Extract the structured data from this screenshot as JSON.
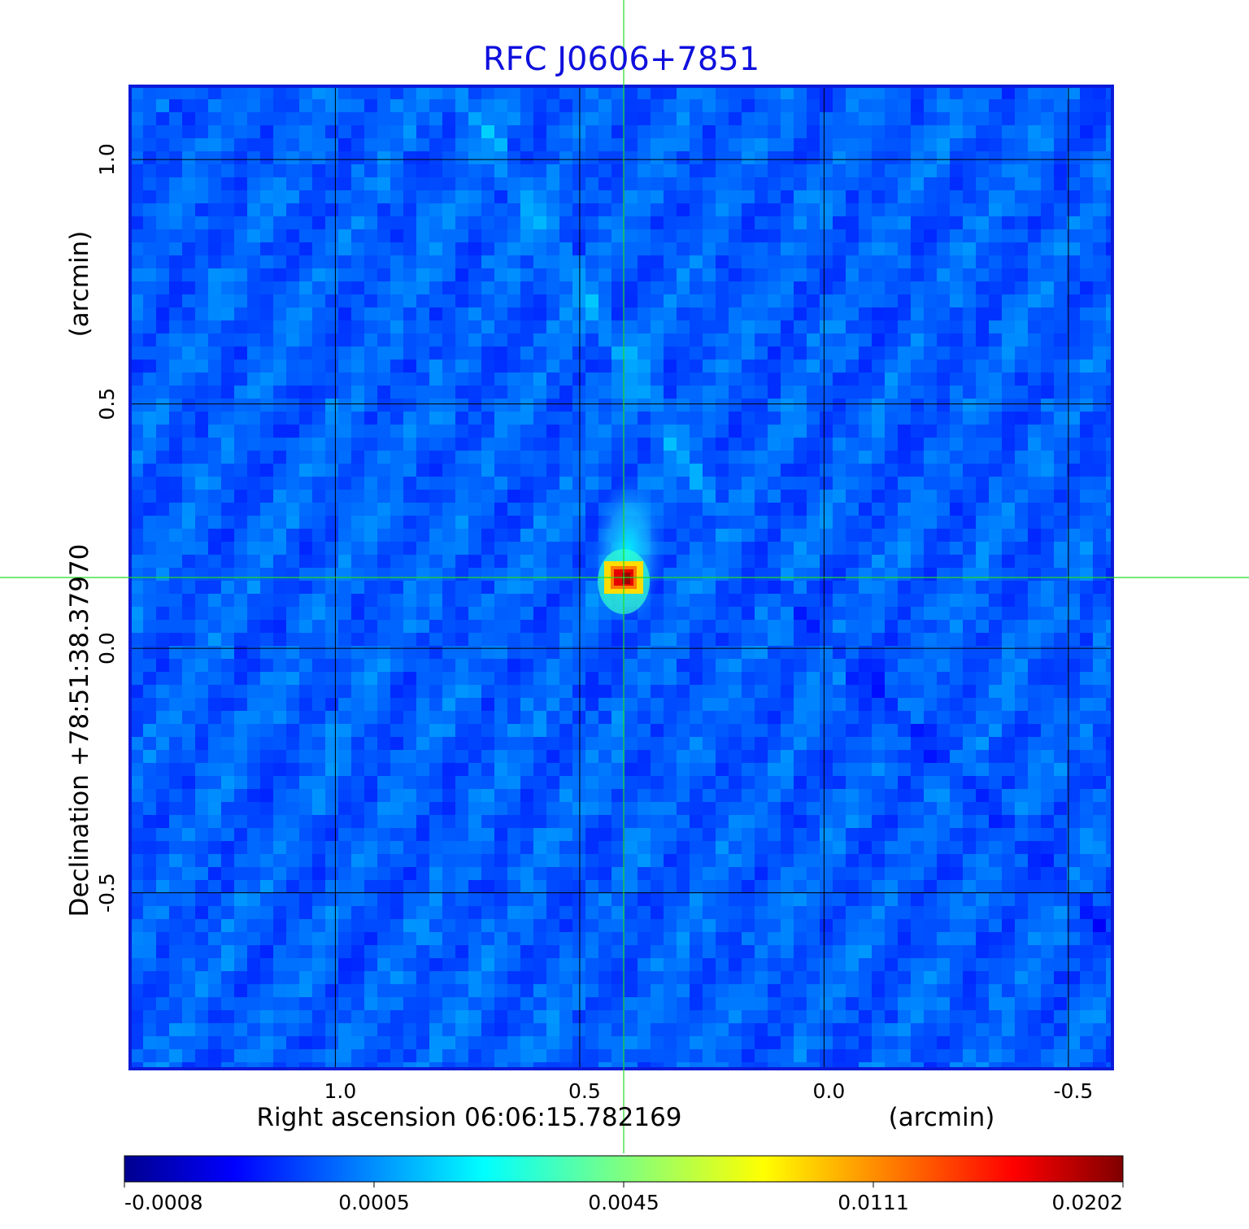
{
  "chart_data": {
    "type": "heatmap",
    "title": "RFC J0606+7851",
    "xlabel": "Right ascension  06:06:15.782169",
    "xunit": "(arcmin)",
    "ylabel": "Declination  +78:51:38.37970",
    "yunit": "(arcmin)",
    "x_ticks": [
      "1.0",
      "0.5",
      "0.0",
      "-0.5"
    ],
    "y_ticks": [
      "1.0",
      "0.5",
      "0.0",
      "-0.5"
    ],
    "xlim": [
      1.42,
      -0.59
    ],
    "ylim": [
      -0.86,
      1.15
    ],
    "x_axis_reversed": true,
    "grid": true,
    "crosshair": {
      "x": 0.41,
      "y": 0.145,
      "color": "#22dd22"
    },
    "source_peak": {
      "x": 0.41,
      "y": 0.145,
      "value": 0.0202
    },
    "colorbar": {
      "colormap": "jet",
      "position": "bottom",
      "tick_labels": [
        "-0.0008",
        "0.0005",
        "0.0045",
        "0.0111",
        "0.0202"
      ]
    }
  }
}
